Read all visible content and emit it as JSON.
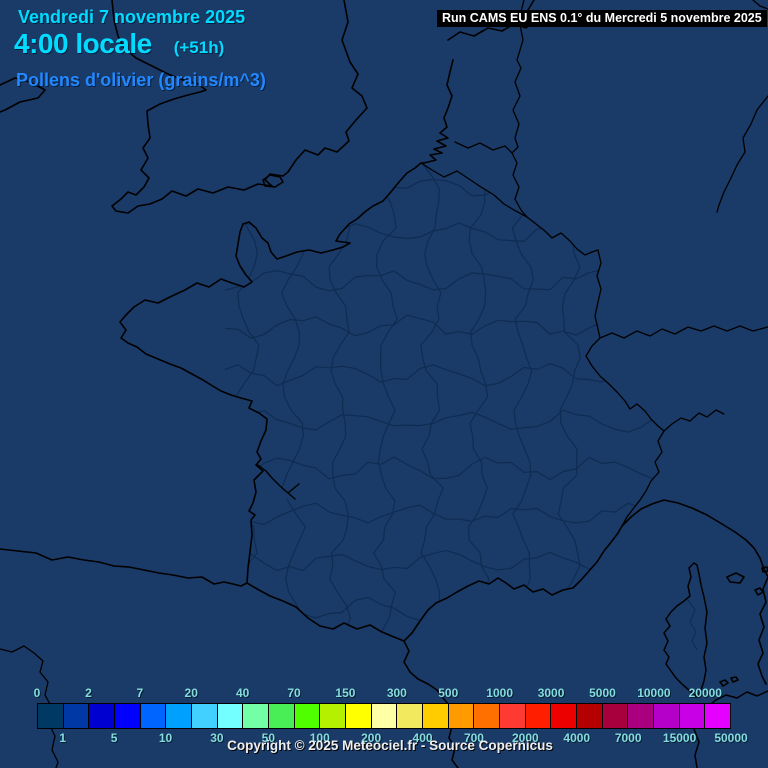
{
  "header": {
    "date": "Vendredi 7 novembre 2025",
    "time": "4:00 locale",
    "offset": "(+51h)",
    "variable": "Pollens d'olivier (grains/m^3)",
    "run": "Run CAMS EU ENS 0.1° du Mercredi 5 novembre 2025"
  },
  "footer": {
    "copyright": "Copyright © 2025 Meteociel.fr - Source Copernicus"
  },
  "colors": {
    "background": "#1a3a68",
    "coastline": "#000000",
    "department_border": "#0f2c52",
    "title_cyan": "#00dcff",
    "variable_blue": "#2288ff",
    "legend_label": "#84dcdc",
    "run_bar_bg": "#000000",
    "run_bar_text": "#ffffff"
  },
  "legend": {
    "top_labels": [
      "0",
      "2",
      "7",
      "20",
      "40",
      "70",
      "150",
      "300",
      "500",
      "1000",
      "3000",
      "5000",
      "10000",
      "20000"
    ],
    "bottom_labels": [
      "1",
      "5",
      "10",
      "30",
      "50",
      "100",
      "200",
      "400",
      "700",
      "2000",
      "4000",
      "7000",
      "15000",
      "50000"
    ],
    "top_indices": [
      0,
      2,
      4,
      6,
      8,
      10,
      12,
      14,
      16,
      18,
      20,
      22,
      24,
      26
    ],
    "bottom_indices": [
      1,
      3,
      5,
      7,
      9,
      11,
      13,
      15,
      17,
      19,
      21,
      23,
      25,
      27
    ],
    "swatches": [
      "#003963",
      "#0039a6",
      "#0000d0",
      "#0000ff",
      "#0064ff",
      "#00a0ff",
      "#41d0ff",
      "#73ffff",
      "#73ffa5",
      "#49ee57",
      "#4fff00",
      "#b4f000",
      "#ffff00",
      "#ffffa5",
      "#f2e95f",
      "#ffcc00",
      "#ff9b00",
      "#ff7000",
      "#ff3a33",
      "#ff1e00",
      "#ec0000",
      "#b40000",
      "#a8003c",
      "#aa0080",
      "#b400c8",
      "#c800e6",
      "#e600ff"
    ]
  }
}
